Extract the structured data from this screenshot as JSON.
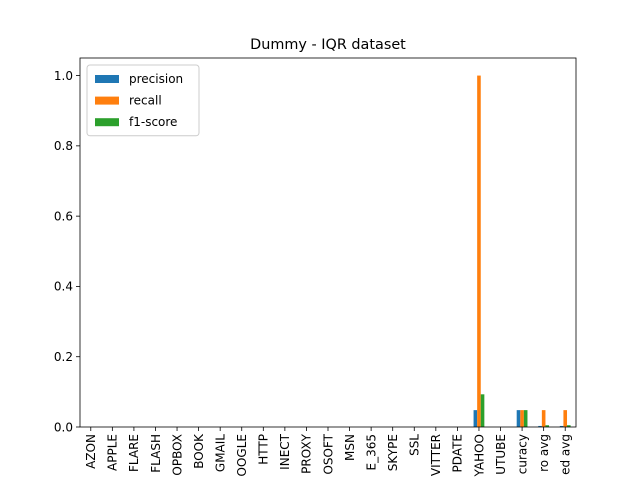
{
  "chart_data": {
    "type": "bar",
    "title": "Dummy - IQR dataset",
    "xlabel": "",
    "ylabel": "",
    "ylim": [
      0,
      1.05
    ],
    "yticks": [
      "0.0",
      "0.2",
      "0.4",
      "0.6",
      "0.8",
      "1.0"
    ],
    "legend_position": "top-left",
    "grid": false,
    "categories": [
      "AZON",
      "APPLE",
      "FLARE",
      "FLASH",
      "OPBOX",
      "BOOK",
      "GMAIL",
      "OOGLE",
      "HTTP",
      "INECT",
      "PROXY",
      "OSOFT",
      "MSN",
      "E_365",
      "SKYPE",
      "SSL",
      "VITTER",
      "PDATE",
      "YAHOO",
      "UTUBE",
      "curacy",
      "ro avg",
      "ed avg"
    ],
    "series": [
      {
        "name": "precision",
        "color": "#1f77b4",
        "values": [
          0,
          0,
          0,
          0,
          0,
          0,
          0,
          0,
          0,
          0,
          0,
          0,
          0,
          0,
          0,
          0,
          0,
          0,
          0.048,
          0,
          0.048,
          0.003,
          0.003
        ]
      },
      {
        "name": "recall",
        "color": "#ff7f0e",
        "values": [
          0,
          0,
          0,
          0,
          0,
          0,
          0,
          0,
          0,
          0,
          0,
          0,
          0,
          0,
          0,
          0,
          0,
          0,
          1.0,
          0,
          0.048,
          0.048,
          0.048
        ]
      },
      {
        "name": "f1-score",
        "color": "#2ca02c",
        "values": [
          0,
          0,
          0,
          0,
          0,
          0,
          0,
          0,
          0,
          0,
          0,
          0,
          0,
          0,
          0,
          0,
          0,
          0,
          0.093,
          0,
          0.048,
          0.005,
          0.005
        ]
      }
    ]
  }
}
